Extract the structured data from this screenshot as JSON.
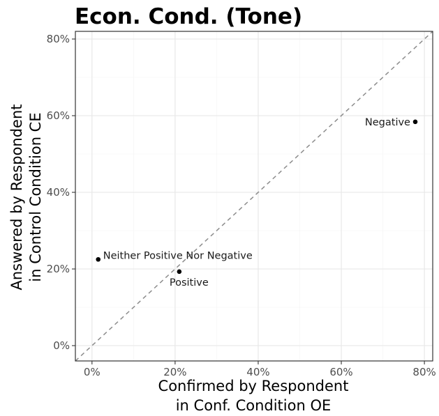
{
  "chart_data": {
    "type": "scatter",
    "title": "Econ. Cond. (Tone)",
    "xlabel": [
      "Confirmed by Respondent",
      "in Conf. Condition OE"
    ],
    "ylabel": [
      "Answered by Respondent",
      "in Control Condition CE"
    ],
    "xlim": [
      -0.04,
      0.82
    ],
    "ylim": [
      -0.04,
      0.82
    ],
    "x_ticks": [
      0,
      0.2,
      0.4,
      0.6,
      0.8
    ],
    "y_ticks": [
      0,
      0.2,
      0.4,
      0.6,
      0.8
    ],
    "x_tick_labels": [
      "0%",
      "20%",
      "40%",
      "60%",
      "80%"
    ],
    "y_tick_labels": [
      "0%",
      "20%",
      "40%",
      "60%",
      "80%"
    ],
    "grid": true,
    "reference_line": "y = x (dashed)",
    "points": [
      {
        "label": "Negative",
        "x": 0.778,
        "y": 0.584,
        "label_side": "left"
      },
      {
        "label": "Neither Positive Nor Negative",
        "x": 0.015,
        "y": 0.225,
        "label_side": "right"
      },
      {
        "label": "Positive",
        "x": 0.21,
        "y": 0.193,
        "label_side": "below"
      }
    ]
  }
}
